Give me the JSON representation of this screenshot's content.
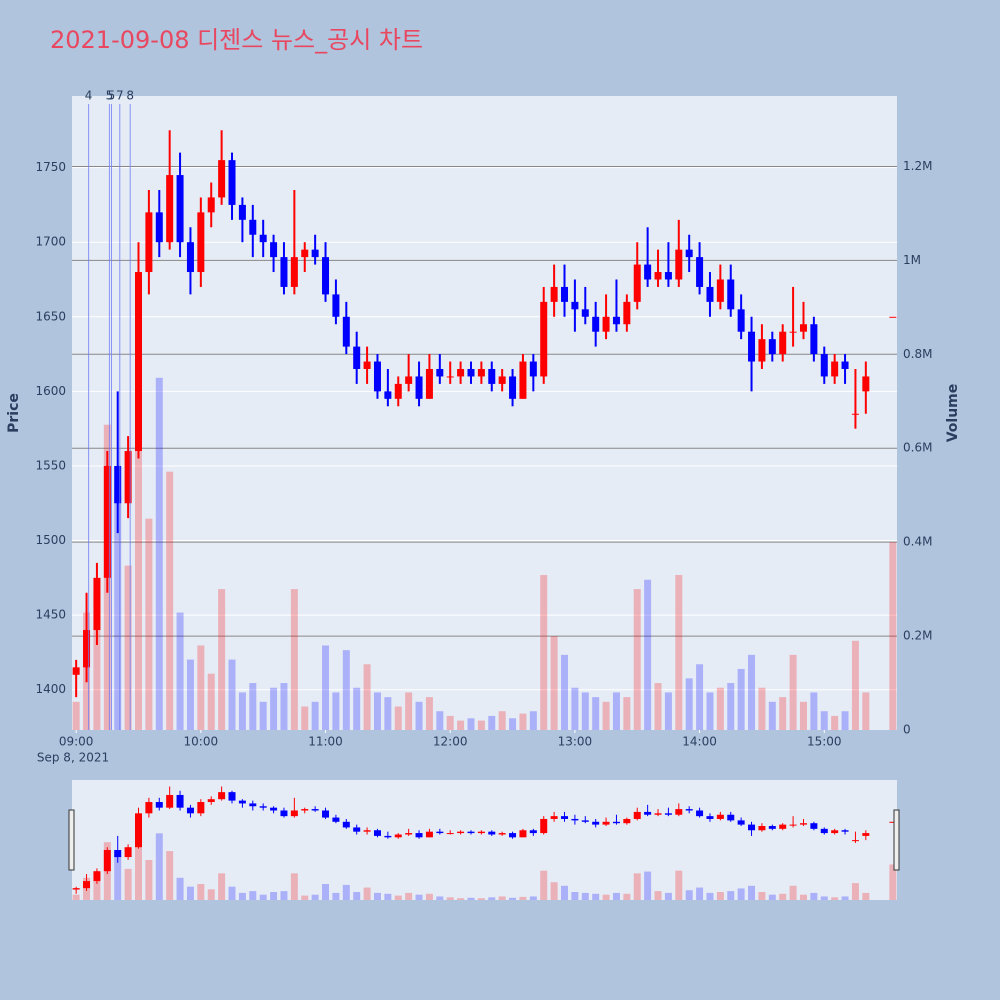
{
  "chart_data": {
    "type": "candlestick",
    "title": "2021-09-08 디젠스 뉴스_공시 차트",
    "y_label": "Price",
    "y2_label": "Volume",
    "x_sublabel": "Sep 8, 2021",
    "increasing_color": "#ff0000",
    "decreasing_color": "#0000ff",
    "x": [
      "09:00",
      "09:05",
      "09:10",
      "09:15",
      "09:20",
      "09:25",
      "09:30",
      "09:35",
      "09:40",
      "09:45",
      "09:50",
      "09:55",
      "10:00",
      "10:05",
      "10:10",
      "10:15",
      "10:20",
      "10:25",
      "10:30",
      "10:35",
      "10:40",
      "10:45",
      "10:50",
      "10:55",
      "11:00",
      "11:05",
      "11:10",
      "11:15",
      "11:20",
      "11:25",
      "11:30",
      "11:35",
      "11:40",
      "11:45",
      "11:50",
      "11:55",
      "12:00",
      "12:05",
      "12:10",
      "12:15",
      "12:20",
      "12:25",
      "12:30",
      "12:35",
      "12:40",
      "12:45",
      "12:50",
      "12:55",
      "13:00",
      "13:05",
      "13:10",
      "13:15",
      "13:20",
      "13:25",
      "13:30",
      "13:35",
      "13:40",
      "13:45",
      "13:50",
      "13:55",
      "14:00",
      "14:05",
      "14:10",
      "14:15",
      "14:20",
      "14:25",
      "14:30",
      "14:35",
      "14:40",
      "14:45",
      "14:50",
      "14:55",
      "15:00",
      "15:05",
      "15:10",
      "15:15",
      "15:20",
      "15:33"
    ],
    "open": [
      1410,
      1415,
      1440,
      1475,
      1550,
      1525,
      1560,
      1680,
      1720,
      1700,
      1745,
      1700,
      1680,
      1720,
      1730,
      1755,
      1725,
      1715,
      1705,
      1700,
      1690,
      1670,
      1690,
      1695,
      1690,
      1665,
      1650,
      1630,
      1615,
      1620,
      1600,
      1595,
      1605,
      1610,
      1595,
      1615,
      1610,
      1610,
      1615,
      1610,
      1615,
      1605,
      1610,
      1595,
      1620,
      1610,
      1660,
      1670,
      1660,
      1655,
      1650,
      1640,
      1650,
      1645,
      1660,
      1685,
      1675,
      1680,
      1675,
      1695,
      1690,
      1670,
      1660,
      1675,
      1655,
      1640,
      1620,
      1635,
      1625,
      1640,
      1640,
      1645,
      1625,
      1610,
      1620,
      1585,
      1600,
      1650
    ],
    "high": [
      1420,
      1465,
      1485,
      1560,
      1600,
      1570,
      1700,
      1735,
      1735,
      1775,
      1760,
      1710,
      1730,
      1740,
      1775,
      1760,
      1730,
      1725,
      1715,
      1705,
      1700,
      1735,
      1700,
      1705,
      1700,
      1675,
      1660,
      1640,
      1630,
      1625,
      1615,
      1610,
      1625,
      1620,
      1625,
      1625,
      1620,
      1620,
      1620,
      1620,
      1620,
      1615,
      1615,
      1625,
      1625,
      1670,
      1685,
      1685,
      1675,
      1670,
      1660,
      1665,
      1675,
      1665,
      1700,
      1710,
      1695,
      1700,
      1715,
      1705,
      1700,
      1680,
      1685,
      1685,
      1665,
      1650,
      1645,
      1640,
      1645,
      1670,
      1660,
      1650,
      1630,
      1625,
      1625,
      1615,
      1620,
      1650
    ],
    "low": [
      1395,
      1405,
      1430,
      1465,
      1505,
      1515,
      1555,
      1665,
      1690,
      1695,
      1690,
      1665,
      1670,
      1710,
      1725,
      1715,
      1700,
      1690,
      1690,
      1680,
      1665,
      1665,
      1680,
      1685,
      1660,
      1645,
      1625,
      1605,
      1605,
      1595,
      1590,
      1590,
      1600,
      1590,
      1595,
      1605,
      1605,
      1605,
      1605,
      1605,
      1600,
      1600,
      1590,
      1595,
      1600,
      1605,
      1650,
      1650,
      1640,
      1645,
      1630,
      1635,
      1640,
      1640,
      1655,
      1670,
      1670,
      1670,
      1670,
      1680,
      1665,
      1650,
      1655,
      1650,
      1635,
      1600,
      1615,
      1620,
      1620,
      1630,
      1635,
      1620,
      1605,
      1605,
      1605,
      1575,
      1585,
      1650
    ],
    "close": [
      1415,
      1440,
      1475,
      1550,
      1525,
      1560,
      1680,
      1720,
      1700,
      1745,
      1700,
      1680,
      1720,
      1730,
      1755,
      1725,
      1715,
      1705,
      1700,
      1690,
      1670,
      1690,
      1695,
      1690,
      1665,
      1650,
      1630,
      1615,
      1620,
      1600,
      1595,
      1605,
      1610,
      1595,
      1615,
      1610,
      1610,
      1615,
      1610,
      1615,
      1605,
      1610,
      1595,
      1620,
      1610,
      1660,
      1670,
      1660,
      1655,
      1650,
      1640,
      1650,
      1645,
      1660,
      1685,
      1675,
      1680,
      1675,
      1695,
      1690,
      1670,
      1660,
      1675,
      1655,
      1640,
      1620,
      1635,
      1625,
      1640,
      1640,
      1645,
      1625,
      1610,
      1620,
      1615,
      1585,
      1610,
      1650
    ],
    "volume": [
      60000,
      250000,
      300000,
      650000,
      500000,
      350000,
      600000,
      450000,
      750000,
      550000,
      250000,
      150000,
      180000,
      120000,
      300000,
      150000,
      80000,
      100000,
      60000,
      90000,
      100000,
      300000,
      50000,
      60000,
      180000,
      80000,
      170000,
      90000,
      140000,
      80000,
      70000,
      50000,
      80000,
      60000,
      70000,
      40000,
      30000,
      20000,
      25000,
      20000,
      30000,
      40000,
      25000,
      35000,
      40000,
      330000,
      200000,
      160000,
      90000,
      80000,
      70000,
      60000,
      80000,
      70000,
      300000,
      320000,
      100000,
      80000,
      330000,
      110000,
      140000,
      80000,
      90000,
      100000,
      130000,
      160000,
      90000,
      60000,
      70000,
      160000,
      60000,
      80000,
      40000,
      30000,
      40000,
      190000,
      80000,
      400000
    ],
    "annotations": [
      {
        "x": "09:06",
        "text": "4"
      },
      {
        "x": "09:16",
        "text": "5"
      },
      {
        "x": "09:17",
        "text": "5"
      },
      {
        "x": "09:21",
        "text": "7"
      },
      {
        "x": "09:26",
        "text": "8"
      }
    ],
    "xlim": [
      "08:58",
      "15:35"
    ],
    "xticks": [
      "09:00",
      "10:00",
      "11:00",
      "12:00",
      "13:00",
      "14:00",
      "15:00"
    ],
    "ylim": [
      1373,
      1798
    ],
    "yticks": [
      1400,
      1450,
      1500,
      1550,
      1600,
      1650,
      1700,
      1750
    ],
    "y2lim": [
      0,
      1350000
    ],
    "y2ticks": [
      0,
      {
        "value": 200000,
        "label": "0.2M"
      },
      {
        "value": 400000,
        "label": "0.4M"
      },
      {
        "value": 600000,
        "label": "0.6M"
      },
      {
        "value": 800000,
        "label": "0.8M"
      },
      {
        "value": 1000000,
        "label": "1M"
      },
      {
        "value": 1200000,
        "label": "1.2M"
      }
    ],
    "grid": true,
    "rangeslider": true
  }
}
